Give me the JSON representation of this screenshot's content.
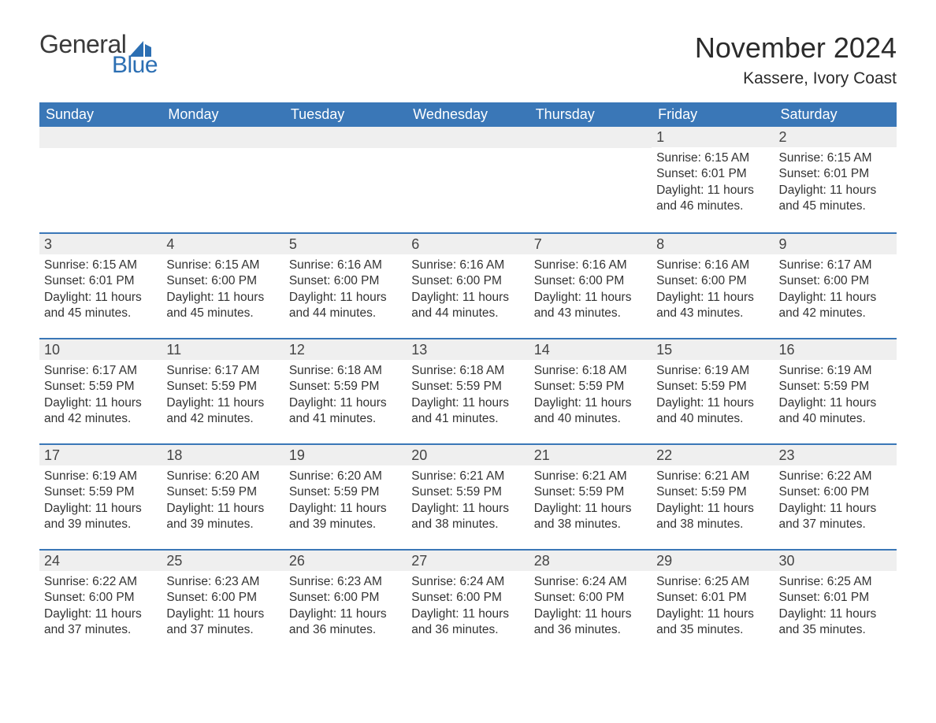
{
  "brand": {
    "word1": "General",
    "word2": "Blue",
    "sail_color": "#2c6fb3",
    "text_color_dark": "#3a3a3a"
  },
  "title": "November 2024",
  "location": "Kassere, Ivory Coast",
  "colors": {
    "header_bg": "#3a77b7",
    "header_text": "#ffffff",
    "row_divider": "#3a77b7",
    "daynum_bg": "#efefef",
    "body_text": "#333333",
    "page_bg": "#ffffff"
  },
  "day_headers": [
    "Sunday",
    "Monday",
    "Tuesday",
    "Wednesday",
    "Thursday",
    "Friday",
    "Saturday"
  ],
  "weeks": [
    [
      null,
      null,
      null,
      null,
      null,
      {
        "n": "1",
        "sunrise": "6:15 AM",
        "sunset": "6:01 PM",
        "daylight": "11 hours and 46 minutes."
      },
      {
        "n": "2",
        "sunrise": "6:15 AM",
        "sunset": "6:01 PM",
        "daylight": "11 hours and 45 minutes."
      }
    ],
    [
      {
        "n": "3",
        "sunrise": "6:15 AM",
        "sunset": "6:01 PM",
        "daylight": "11 hours and 45 minutes."
      },
      {
        "n": "4",
        "sunrise": "6:15 AM",
        "sunset": "6:00 PM",
        "daylight": "11 hours and 45 minutes."
      },
      {
        "n": "5",
        "sunrise": "6:16 AM",
        "sunset": "6:00 PM",
        "daylight": "11 hours and 44 minutes."
      },
      {
        "n": "6",
        "sunrise": "6:16 AM",
        "sunset": "6:00 PM",
        "daylight": "11 hours and 44 minutes."
      },
      {
        "n": "7",
        "sunrise": "6:16 AM",
        "sunset": "6:00 PM",
        "daylight": "11 hours and 43 minutes."
      },
      {
        "n": "8",
        "sunrise": "6:16 AM",
        "sunset": "6:00 PM",
        "daylight": "11 hours and 43 minutes."
      },
      {
        "n": "9",
        "sunrise": "6:17 AM",
        "sunset": "6:00 PM",
        "daylight": "11 hours and 42 minutes."
      }
    ],
    [
      {
        "n": "10",
        "sunrise": "6:17 AM",
        "sunset": "5:59 PM",
        "daylight": "11 hours and 42 minutes."
      },
      {
        "n": "11",
        "sunrise": "6:17 AM",
        "sunset": "5:59 PM",
        "daylight": "11 hours and 42 minutes."
      },
      {
        "n": "12",
        "sunrise": "6:18 AM",
        "sunset": "5:59 PM",
        "daylight": "11 hours and 41 minutes."
      },
      {
        "n": "13",
        "sunrise": "6:18 AM",
        "sunset": "5:59 PM",
        "daylight": "11 hours and 41 minutes."
      },
      {
        "n": "14",
        "sunrise": "6:18 AM",
        "sunset": "5:59 PM",
        "daylight": "11 hours and 40 minutes."
      },
      {
        "n": "15",
        "sunrise": "6:19 AM",
        "sunset": "5:59 PM",
        "daylight": "11 hours and 40 minutes."
      },
      {
        "n": "16",
        "sunrise": "6:19 AM",
        "sunset": "5:59 PM",
        "daylight": "11 hours and 40 minutes."
      }
    ],
    [
      {
        "n": "17",
        "sunrise": "6:19 AM",
        "sunset": "5:59 PM",
        "daylight": "11 hours and 39 minutes."
      },
      {
        "n": "18",
        "sunrise": "6:20 AM",
        "sunset": "5:59 PM",
        "daylight": "11 hours and 39 minutes."
      },
      {
        "n": "19",
        "sunrise": "6:20 AM",
        "sunset": "5:59 PM",
        "daylight": "11 hours and 39 minutes."
      },
      {
        "n": "20",
        "sunrise": "6:21 AM",
        "sunset": "5:59 PM",
        "daylight": "11 hours and 38 minutes."
      },
      {
        "n": "21",
        "sunrise": "6:21 AM",
        "sunset": "5:59 PM",
        "daylight": "11 hours and 38 minutes."
      },
      {
        "n": "22",
        "sunrise": "6:21 AM",
        "sunset": "5:59 PM",
        "daylight": "11 hours and 38 minutes."
      },
      {
        "n": "23",
        "sunrise": "6:22 AM",
        "sunset": "6:00 PM",
        "daylight": "11 hours and 37 minutes."
      }
    ],
    [
      {
        "n": "24",
        "sunrise": "6:22 AM",
        "sunset": "6:00 PM",
        "daylight": "11 hours and 37 minutes."
      },
      {
        "n": "25",
        "sunrise": "6:23 AM",
        "sunset": "6:00 PM",
        "daylight": "11 hours and 37 minutes."
      },
      {
        "n": "26",
        "sunrise": "6:23 AM",
        "sunset": "6:00 PM",
        "daylight": "11 hours and 36 minutes."
      },
      {
        "n": "27",
        "sunrise": "6:24 AM",
        "sunset": "6:00 PM",
        "daylight": "11 hours and 36 minutes."
      },
      {
        "n": "28",
        "sunrise": "6:24 AM",
        "sunset": "6:00 PM",
        "daylight": "11 hours and 36 minutes."
      },
      {
        "n": "29",
        "sunrise": "6:25 AM",
        "sunset": "6:01 PM",
        "daylight": "11 hours and 35 minutes."
      },
      {
        "n": "30",
        "sunrise": "6:25 AM",
        "sunset": "6:01 PM",
        "daylight": "11 hours and 35 minutes."
      }
    ]
  ],
  "labels": {
    "sunrise": "Sunrise: ",
    "sunset": "Sunset: ",
    "daylight": "Daylight: "
  }
}
